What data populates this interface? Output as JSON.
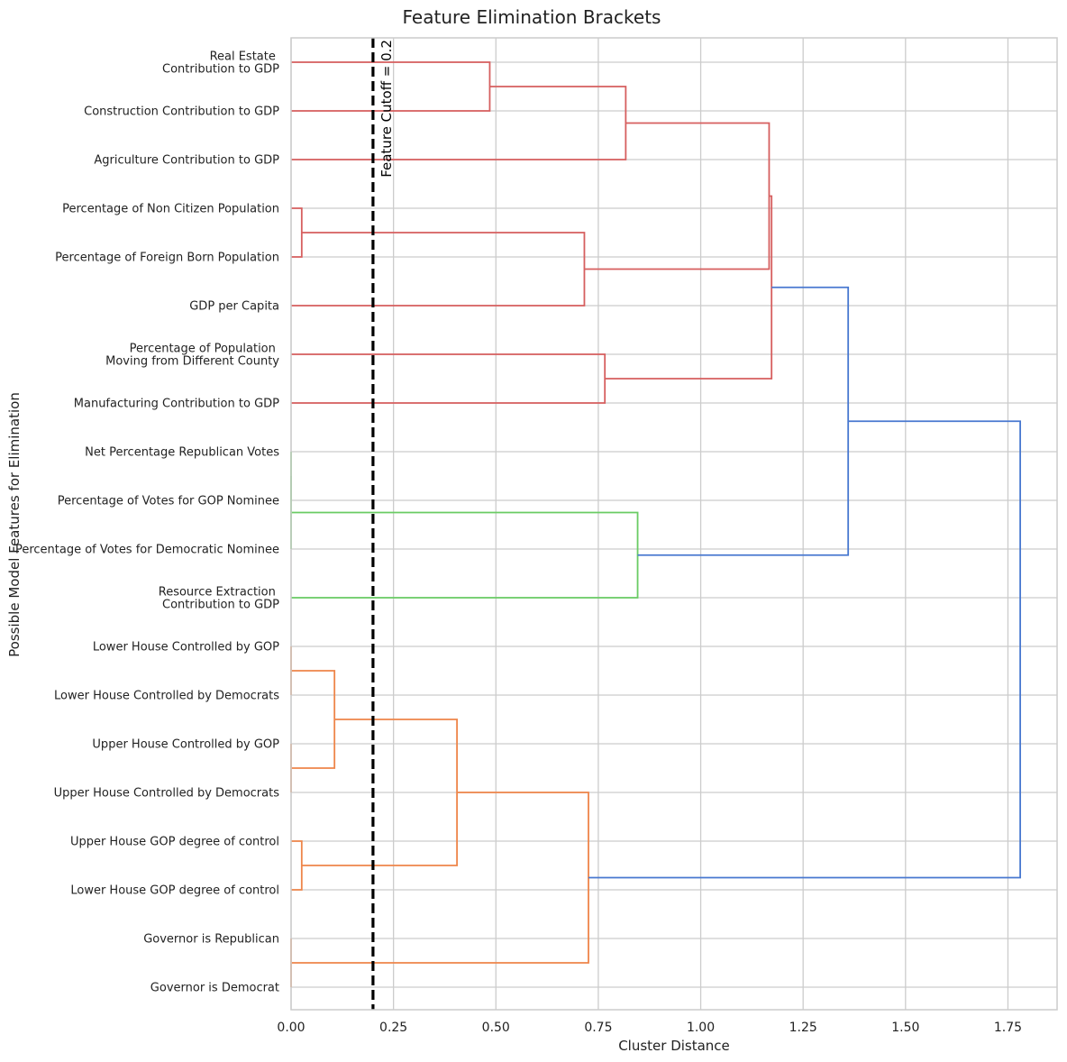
{
  "chart_data": {
    "type": "dendrogram",
    "title": "Feature Elimination Brackets",
    "xlabel": "Cluster Distance",
    "ylabel": "Possible Model Features for Elimination",
    "xlim": [
      0,
      1.87
    ],
    "xticks": [
      "0.00",
      "0.25",
      "0.50",
      "0.75",
      "1.00",
      "1.25",
      "1.50",
      "1.75"
    ],
    "xtick_values": [
      0,
      0.25,
      0.5,
      0.75,
      1.0,
      1.25,
      1.5,
      1.75
    ],
    "grid": true,
    "features": [
      [
        "Real Estate ",
        "Contribution to GDP"
      ],
      [
        "Construction Contribution to GDP"
      ],
      [
        "Agriculture Contribution to GDP"
      ],
      [
        "Percentage of Non Citizen Population"
      ],
      [
        "Percentage of Foreign Born Population"
      ],
      [
        "GDP per Capita"
      ],
      [
        "Percentage of Population ",
        "Moving from Different County"
      ],
      [
        "Manufacturing Contribution to GDP"
      ],
      [
        "Net Percentage Republican Votes"
      ],
      [
        "Percentage of Votes for GOP Nominee"
      ],
      [
        "Percentage of Votes for Democratic Nominee"
      ],
      [
        "Resource Extraction ",
        "Contribution to GDP"
      ],
      [
        "Lower House Controlled by GOP"
      ],
      [
        "Lower House Controlled by Democrats"
      ],
      [
        "Upper House Controlled by GOP"
      ],
      [
        "Upper House Controlled by Democrats"
      ],
      [
        "Upper House GOP degree of control"
      ],
      [
        "Lower House GOP degree of control"
      ],
      [
        "Governor is Republican"
      ],
      [
        "Governor is Democrat"
      ]
    ],
    "cutoff": {
      "value": 0.2,
      "label": "Feature Cutoff = 0.2"
    },
    "colors": {
      "red": "#d65f5f",
      "green": "#6acc64",
      "orange": "#ee854a",
      "blue": "#4878d0",
      "cutoff": "#000000",
      "grid": "#cccccc"
    },
    "links": [
      {
        "left": 0,
        "right": 1,
        "height": 0.485,
        "color": "red"
      },
      {
        "left": "L0",
        "right": 2,
        "height": 0.817,
        "color": "red"
      },
      {
        "left": 3,
        "right": 4,
        "height": 0.026,
        "color": "red"
      },
      {
        "left": "L2",
        "right": 5,
        "height": 0.716,
        "color": "red"
      },
      {
        "left": "L1",
        "right": "L3",
        "height": 1.167,
        "color": "red"
      },
      {
        "left": 6,
        "right": 7,
        "height": 0.766,
        "color": "red"
      },
      {
        "left": "L4",
        "right": "L5",
        "height": 1.173,
        "color": "red"
      },
      {
        "left": 8,
        "right": 9,
        "height": 0.0,
        "color": "green"
      },
      {
        "left": "L7",
        "right": 10,
        "height": 0.0,
        "color": "green"
      },
      {
        "left": "L8",
        "right": 11,
        "height": 0.846,
        "color": "green"
      },
      {
        "left": "L6",
        "right": "L9",
        "height": 1.36,
        "color": "blue"
      },
      {
        "left": 12,
        "right": 13,
        "height": 0.0,
        "color": "orange"
      },
      {
        "left": 14,
        "right": 15,
        "height": 0.0,
        "color": "orange"
      },
      {
        "left": "L11",
        "right": "L12",
        "height": 0.106,
        "color": "orange"
      },
      {
        "left": 16,
        "right": 17,
        "height": 0.026,
        "color": "orange"
      },
      {
        "left": "L13",
        "right": "L14",
        "height": 0.405,
        "color": "orange"
      },
      {
        "left": 18,
        "right": 19,
        "height": 0.0,
        "color": "orange"
      },
      {
        "left": "L15",
        "right": "L16",
        "height": 0.726,
        "color": "orange"
      },
      {
        "left": "L10",
        "right": "L17",
        "height": 1.78,
        "color": "blue"
      }
    ]
  }
}
